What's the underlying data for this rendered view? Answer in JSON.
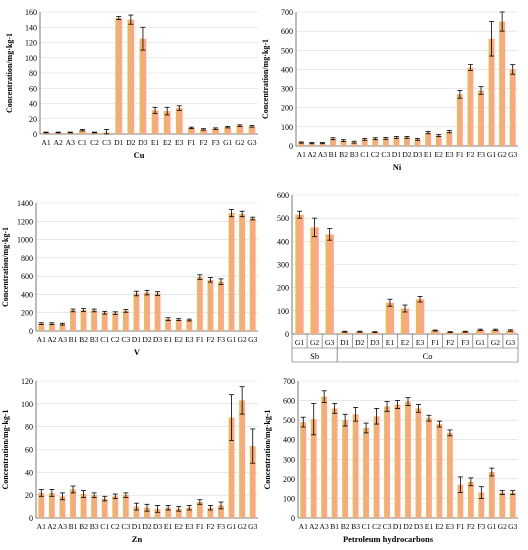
{
  "figure": {
    "background": "#ffffff",
    "bar_color": "#f7a88a",
    "bar_highlight": "#f5c400",
    "axis_color": "#595959",
    "grid_color": "#d9d9d9",
    "text_color": "#000000"
  },
  "chart_data": [
    {
      "type": "bar",
      "xlabel": "Cu",
      "ylabel": "Concentration/mg·kg-1",
      "ylim": [
        0,
        160
      ],
      "yticks": [
        0,
        20,
        40,
        60,
        80,
        100,
        120,
        140,
        160
      ],
      "grid": true,
      "categories": [
        "A1",
        "A2",
        "A3",
        "C1",
        "C2",
        "C3",
        "D1",
        "D2",
        "D3",
        "E1",
        "E2",
        "E3",
        "F1",
        "F2",
        "F3",
        "G1",
        "G2",
        "G3"
      ],
      "values": [
        2,
        2,
        2,
        5,
        2,
        2,
        152,
        150,
        125,
        31,
        30,
        34,
        8,
        6,
        7,
        9,
        11,
        10
      ],
      "errors": [
        0.5,
        0.5,
        0.5,
        1,
        0.5,
        4,
        2,
        6,
        15,
        4,
        5,
        3,
        1,
        1,
        1,
        1,
        1,
        1
      ]
    },
    {
      "type": "bar",
      "xlabel": "Ni",
      "ylabel": "Concentration/mg·kg-1",
      "ylim": [
        0,
        700
      ],
      "yticks": [
        0,
        100,
        200,
        300,
        400,
        500,
        600,
        700
      ],
      "grid": true,
      "categories": [
        "A1",
        "A2",
        "A3",
        "B1",
        "B2",
        "B3",
        "C1",
        "C2",
        "C3",
        "D1",
        "D2",
        "D3",
        "E1",
        "E2",
        "E3",
        "F1",
        "F2",
        "F3",
        "G1",
        "G2",
        "G3"
      ],
      "values": [
        18,
        15,
        15,
        38,
        28,
        20,
        35,
        38,
        40,
        45,
        45,
        35,
        70,
        55,
        75,
        270,
        410,
        290,
        560,
        650,
        400
      ],
      "errors": [
        3,
        3,
        3,
        5,
        5,
        5,
        5,
        5,
        5,
        5,
        5,
        5,
        6,
        6,
        6,
        20,
        15,
        20,
        90,
        50,
        25
      ]
    },
    {
      "type": "bar",
      "xlabel": "V",
      "ylabel": "Concentration/mg·kg-1",
      "ylim": [
        0,
        1400
      ],
      "yticks": [
        0,
        200,
        400,
        600,
        800,
        1000,
        1200,
        1400
      ],
      "grid": true,
      "categories": [
        "A1",
        "A2",
        "A3",
        "B1",
        "B2",
        "B3",
        "C1",
        "C2",
        "C3",
        "D1",
        "D2",
        "D3",
        "E1",
        "E2",
        "E3",
        "F1",
        "F2",
        "F3",
        "G1",
        "G2",
        "G3"
      ],
      "values": [
        80,
        80,
        75,
        225,
        230,
        225,
        200,
        195,
        220,
        410,
        420,
        410,
        130,
        125,
        120,
        590,
        560,
        540,
        1290,
        1280,
        1230
      ],
      "errors": [
        10,
        10,
        10,
        15,
        15,
        15,
        15,
        15,
        15,
        25,
        25,
        20,
        15,
        10,
        10,
        25,
        25,
        30,
        40,
        30,
        15
      ]
    },
    {
      "type": "bar",
      "xlabel_groups": [
        "Sb",
        "Co"
      ],
      "ylabel": "",
      "ylim": [
        0,
        600
      ],
      "yticks": [
        0,
        100,
        200,
        300,
        400,
        500,
        600
      ],
      "grid": true,
      "categories": [
        "G1",
        "G2",
        "G3",
        "D1",
        "D2",
        "D3",
        "E1",
        "E2",
        "E3",
        "F1",
        "F2",
        "F3",
        "G1",
        "G2",
        "G3"
      ],
      "group_spans": [
        [
          0,
          3
        ],
        [
          3,
          15
        ]
      ],
      "values": [
        515,
        460,
        430,
        10,
        10,
        8,
        135,
        110,
        150,
        15,
        8,
        10,
        18,
        18,
        15
      ],
      "errors": [
        15,
        40,
        25,
        2,
        2,
        2,
        15,
        15,
        12,
        2,
        2,
        2,
        3,
        3,
        3
      ]
    },
    {
      "type": "bar",
      "xlabel": "Zn",
      "ylabel": "Concentration/mg·kg-1",
      "ylim": [
        0,
        120
      ],
      "yticks": [
        0,
        20,
        40,
        60,
        80,
        100,
        120
      ],
      "grid": true,
      "categories": [
        "A1",
        "A2",
        "A3",
        "B1",
        "B2",
        "B3",
        "C1",
        "C2",
        "C3",
        "D1",
        "D2",
        "D3",
        "E1",
        "E2",
        "E3",
        "F1",
        "F2",
        "F3",
        "G1",
        "G2",
        "G3"
      ],
      "values": [
        22,
        22,
        19,
        25,
        21,
        20,
        17,
        19,
        20,
        10,
        9,
        8,
        9,
        8,
        9,
        14,
        9,
        11,
        88,
        103,
        63
      ],
      "errors": [
        3,
        3,
        3,
        3,
        3,
        2,
        2,
        2,
        2,
        3,
        3,
        3,
        2,
        2,
        2,
        2,
        2,
        3,
        20,
        12,
        15
      ]
    },
    {
      "type": "bar",
      "xlabel": "Petroleum hydrocarbons",
      "ylabel": "Concentration/mg·kg-1",
      "ylim": [
        0,
        700
      ],
      "yticks": [
        0,
        100,
        200,
        300,
        400,
        500,
        600,
        700
      ],
      "grid": true,
      "categories": [
        "A1",
        "A2",
        "A3",
        "B1",
        "B2",
        "B3",
        "C1",
        "C2",
        "C3",
        "D1",
        "D2",
        "D3",
        "E1",
        "E2",
        "E3",
        "F1",
        "F2",
        "F3",
        "G1",
        "G2",
        "G3"
      ],
      "values": [
        490,
        505,
        620,
        560,
        500,
        530,
        460,
        520,
        570,
        580,
        595,
        560,
        510,
        480,
        435,
        170,
        185,
        130,
        235,
        130,
        130
      ],
      "errors": [
        25,
        80,
        30,
        25,
        30,
        35,
        25,
        40,
        25,
        20,
        20,
        20,
        15,
        15,
        15,
        40,
        20,
        30,
        20,
        10,
        10
      ]
    }
  ]
}
